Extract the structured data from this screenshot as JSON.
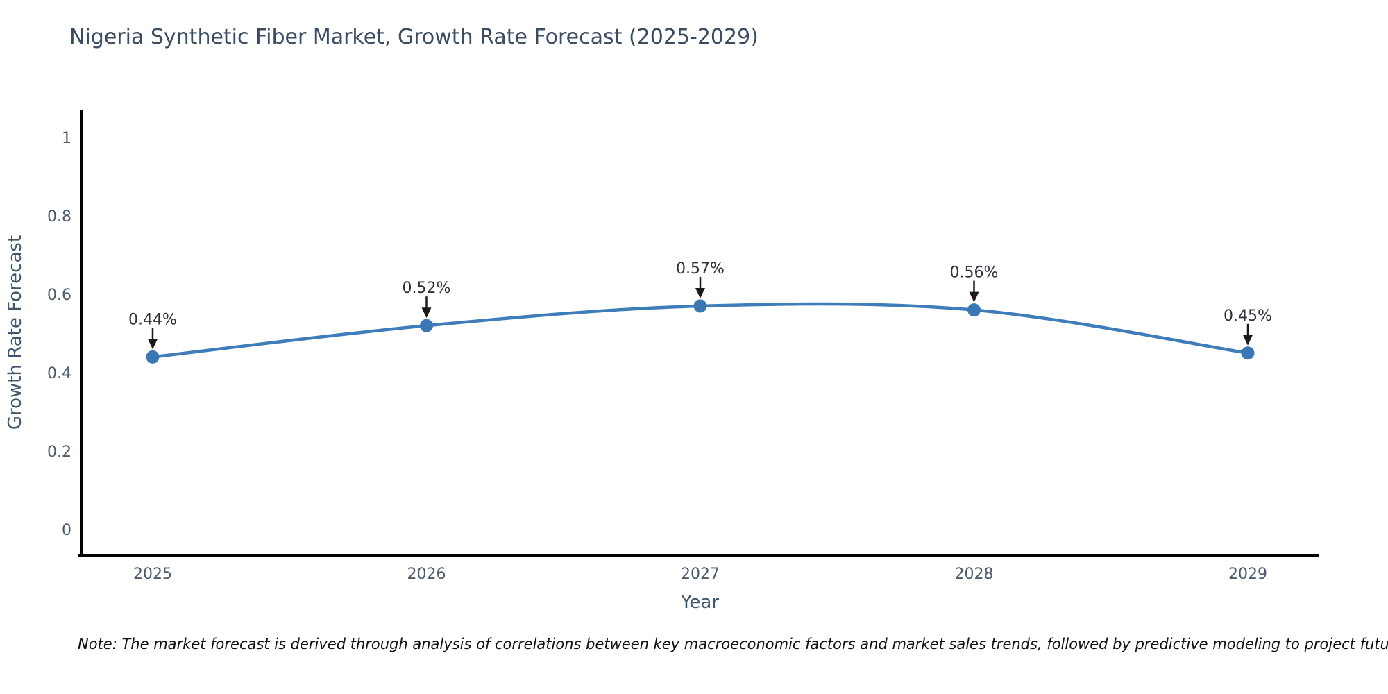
{
  "title": "Nigeria Synthetic Fiber Market, Growth Rate Forecast (2025-2029)",
  "note": "Note: The market forecast is derived through analysis of correlations between key macroeconomic factors and market sales trends, followed by predictive modeling to project future sales",
  "chart_data": {
    "type": "line",
    "x": [
      "2025",
      "2026",
      "2027",
      "2028",
      "2029"
    ],
    "values": [
      0.44,
      0.52,
      0.57,
      0.56,
      0.45
    ],
    "point_labels": [
      "0.44%",
      "0.52%",
      "0.57%",
      "0.56%",
      "0.45%"
    ],
    "title": "Nigeria Synthetic Fiber Market, Growth Rate Forecast (2025-2029)",
    "xlabel": "Year",
    "ylabel": "Growth Rate Forecast",
    "yticks": [
      0,
      0.2,
      0.4,
      0.6,
      0.8,
      1
    ],
    "ytick_labels": [
      "0",
      "0.2",
      "0.4",
      "0.6",
      "0.8",
      "1"
    ],
    "ylim": [
      -0.07,
      1.13
    ],
    "grid": false,
    "legend": "none",
    "colors": {
      "line": "#3e7db9",
      "marker": "#3a78b5",
      "axis": "#000000",
      "tick_text": "#4c5a6b",
      "axis_label_text": "#42576b",
      "annotation_text": "#2b3138",
      "arrow": "#1a1a1a"
    }
  }
}
